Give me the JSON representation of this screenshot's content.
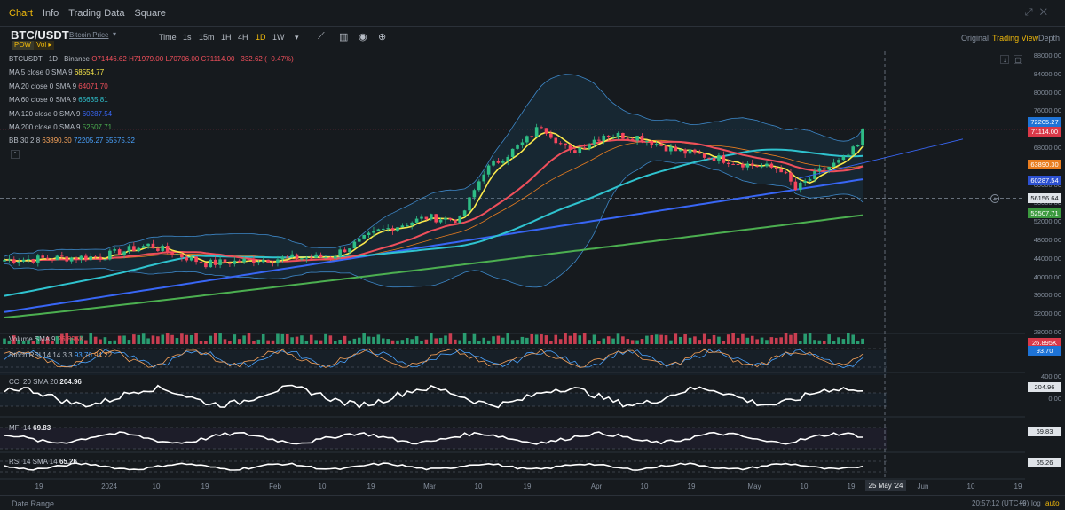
{
  "tabs": [
    {
      "label": "Chart",
      "active": true
    },
    {
      "label": "Info",
      "active": false
    },
    {
      "label": "Trading Data",
      "active": false
    },
    {
      "label": "Square",
      "active": false
    }
  ],
  "header": {
    "pair": "BTC/USDT",
    "subtitle": "Bitcoin Price",
    "badge_pow": "POW",
    "badge_vol": "Vol",
    "timeframes": [
      "Time",
      "1s",
      "15m",
      "1H",
      "4H",
      "1D",
      "1W"
    ],
    "active_timeframe": "1D",
    "view_original": "Original",
    "view_trading": "Trading View",
    "view_depth": "Depth"
  },
  "legend": {
    "ohlc": "BTCUSDT · 1D · Binance",
    "open": "O71446.62",
    "high": "H71979.00",
    "low": "L70706.00",
    "close": "C71114.00",
    "change": "−332.62 (−0.47%)",
    "ma": [
      {
        "label": "MA 5 close 0 SMA 9",
        "value": "68554.77",
        "color": "#fbe94b"
      },
      {
        "label": "MA 20 close 0 SMA 9",
        "value": "64071.70",
        "color": "#ef4f5b"
      },
      {
        "label": "MA 60 close 0 SMA 9",
        "value": "65635.81",
        "color": "#2fc3cf"
      },
      {
        "label": "MA 120 close 0 SMA 9",
        "value": "60287.54",
        "color": "#3866f5"
      },
      {
        "label": "MA 200 close 0 SMA 9",
        "value": "52507.71",
        "color": "#4caf50"
      }
    ],
    "bb": {
      "label": "BB 30 2.8",
      "v1": "63890.30",
      "v2": "72205.27",
      "v3": "55575.32"
    }
  },
  "price_axis": [
    "88000.00",
    "84000.00",
    "80000.00",
    "76000.00",
    "72000.00",
    "68000.00",
    "64000.00",
    "60000.00",
    "56000.00",
    "52000.00",
    "48000.00",
    "44000.00",
    "40000.00",
    "36000.00",
    "32000.00",
    "28000.00"
  ],
  "price_tags": {
    "bb_upper": "72205.27",
    "last": "71114.00",
    "bb_mid": "63890.30",
    "ma120": "60287.54",
    "cursor": "56156.64",
    "ma200": "52507.71"
  },
  "indicators": {
    "volume": {
      "label": "Volume SMA 9",
      "value": "26.895K",
      "tag": "26.895K"
    },
    "stoch": {
      "label": "Stoch RSI 14 14 3 3",
      "k": "93.70",
      "d": "94.22",
      "tag": "93.70"
    },
    "cci": {
      "label": "CCI 20 SMA 20",
      "value": "204.96",
      "tag": "204.96",
      "axis": [
        "400.00",
        "200.00",
        "0.00"
      ]
    },
    "mfi": {
      "label": "MFI 14",
      "value": "69.83",
      "tag": "69.83"
    },
    "rsi": {
      "label": "RSI 14 SMA 14",
      "value": "65.26",
      "tag": "65.26"
    }
  },
  "time_axis": [
    "19",
    "2024",
    "10",
    "19",
    "Feb",
    "10",
    "19",
    "Mar",
    "10",
    "19",
    "Apr",
    "10",
    "19",
    "May",
    "10",
    "19",
    "Jun",
    "10",
    "19"
  ],
  "time_cursor": "25 May '24",
  "footer": {
    "date_range": "Date Range",
    "clock": "20:57:12 (UTC+9)",
    "pct": "%",
    "log": "log",
    "auto": "auto"
  },
  "colors": {
    "up": "#2ebd85",
    "down": "#f6465d",
    "accent": "#f0b90b",
    "bg": "#161a1e"
  }
}
